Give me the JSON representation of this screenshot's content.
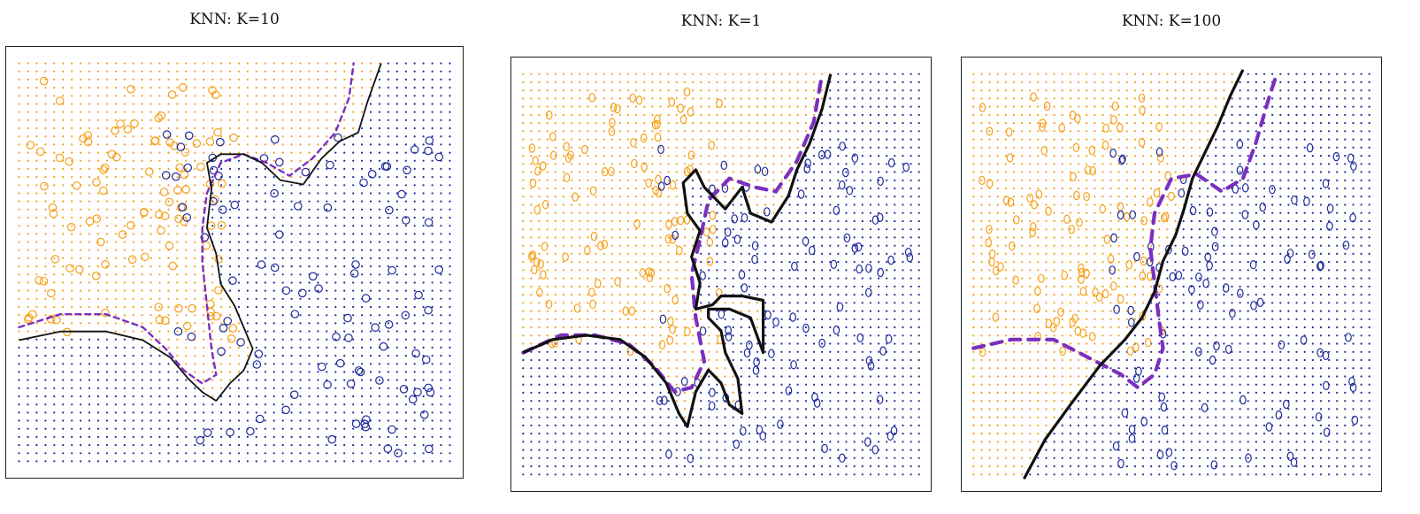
{
  "colors": {
    "orange": "#f5a01a",
    "blue": "#1f2a9a",
    "boundary": "#111111",
    "bayes": "#7b2fbe",
    "frame": "#222222"
  },
  "chart_data": [
    {
      "type": "scatter",
      "title": "KNN: K=10",
      "xlabel": "",
      "ylabel": "",
      "grid": true,
      "legend": "none",
      "classes": [
        "orange",
        "blue"
      ],
      "boundary": "solid black (KNN)",
      "bayes_boundary": "dashed purple"
    },
    {
      "type": "scatter",
      "title": "KNN: K=1",
      "xlabel": "",
      "ylabel": "",
      "grid": true,
      "legend": "none",
      "classes": [
        "orange",
        "blue"
      ],
      "boundary": "solid black (KNN)",
      "bayes_boundary": "dashed purple"
    },
    {
      "type": "scatter",
      "title": "KNN: K=100",
      "xlabel": "",
      "ylabel": "",
      "grid": true,
      "legend": "none",
      "classes": [
        "orange",
        "blue"
      ],
      "boundary": "solid black (KNN)",
      "bayes_boundary": "dashed purple"
    }
  ]
}
